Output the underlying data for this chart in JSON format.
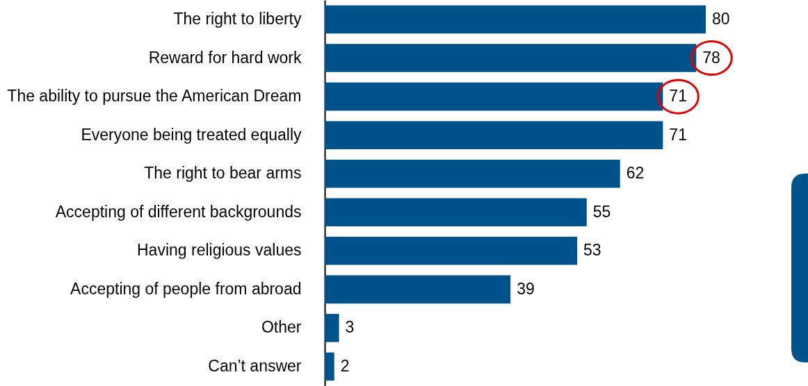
{
  "chart_data": {
    "type": "bar",
    "orientation": "horizontal",
    "data_labels": true,
    "color": "#00538a",
    "categories": [
      "The right to liberty",
      "Reward for hard work",
      "The ability to pursue the American Dream",
      "Everyone being treated equally",
      "The right to bear arms",
      "Accepting of different backgrounds",
      "Having religious values",
      "Accepting of people from abroad",
      "Other",
      "Can’t answer"
    ],
    "values": [
      80,
      78,
      71,
      71,
      62,
      55,
      53,
      39,
      3,
      2
    ]
  }
}
